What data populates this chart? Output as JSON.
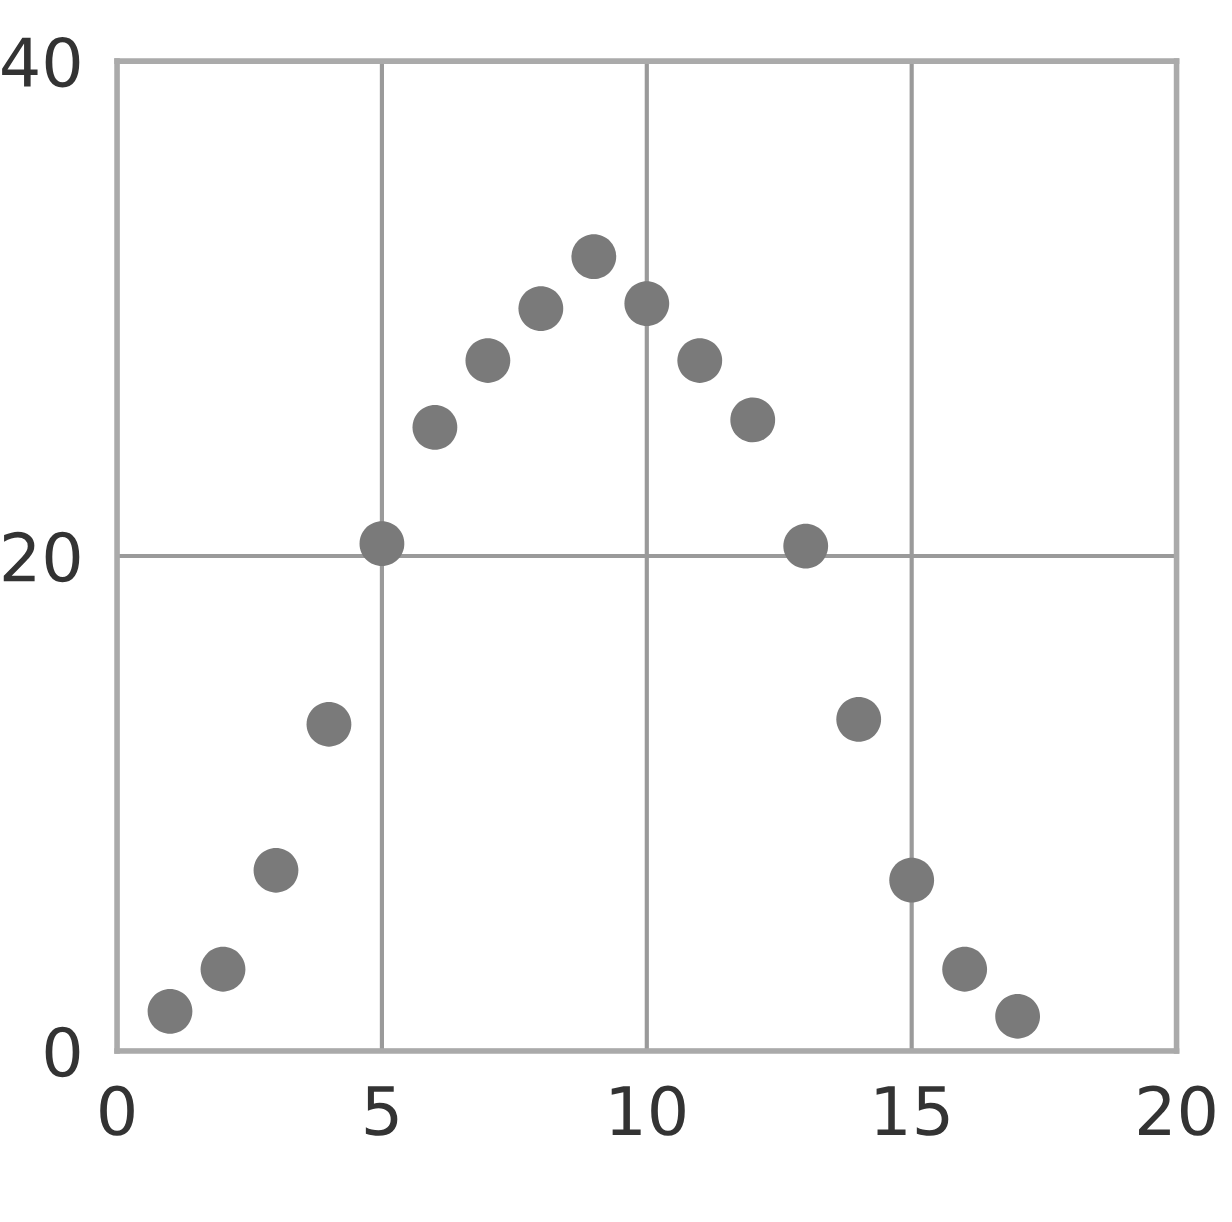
{
  "chart_data": {
    "type": "scatter",
    "x": [
      1,
      2,
      3,
      4,
      5,
      6,
      7,
      8,
      9,
      10,
      11,
      12,
      13,
      14,
      15,
      16,
      17
    ],
    "values": [
      1.6,
      3.3,
      7.3,
      13.2,
      20.5,
      25.2,
      27.9,
      30,
      32.1,
      30.2,
      27.9,
      25.5,
      20.4,
      13.4,
      6.9,
      3.3,
      1.4
    ],
    "color": "#7a7a7a",
    "marker": "circle",
    "xlim": [
      0,
      20
    ],
    "xticks": [
      0,
      5,
      10,
      15,
      20
    ],
    "ylim": [
      0,
      40
    ],
    "yticks": [
      0,
      20,
      40
    ],
    "grid": true
  }
}
